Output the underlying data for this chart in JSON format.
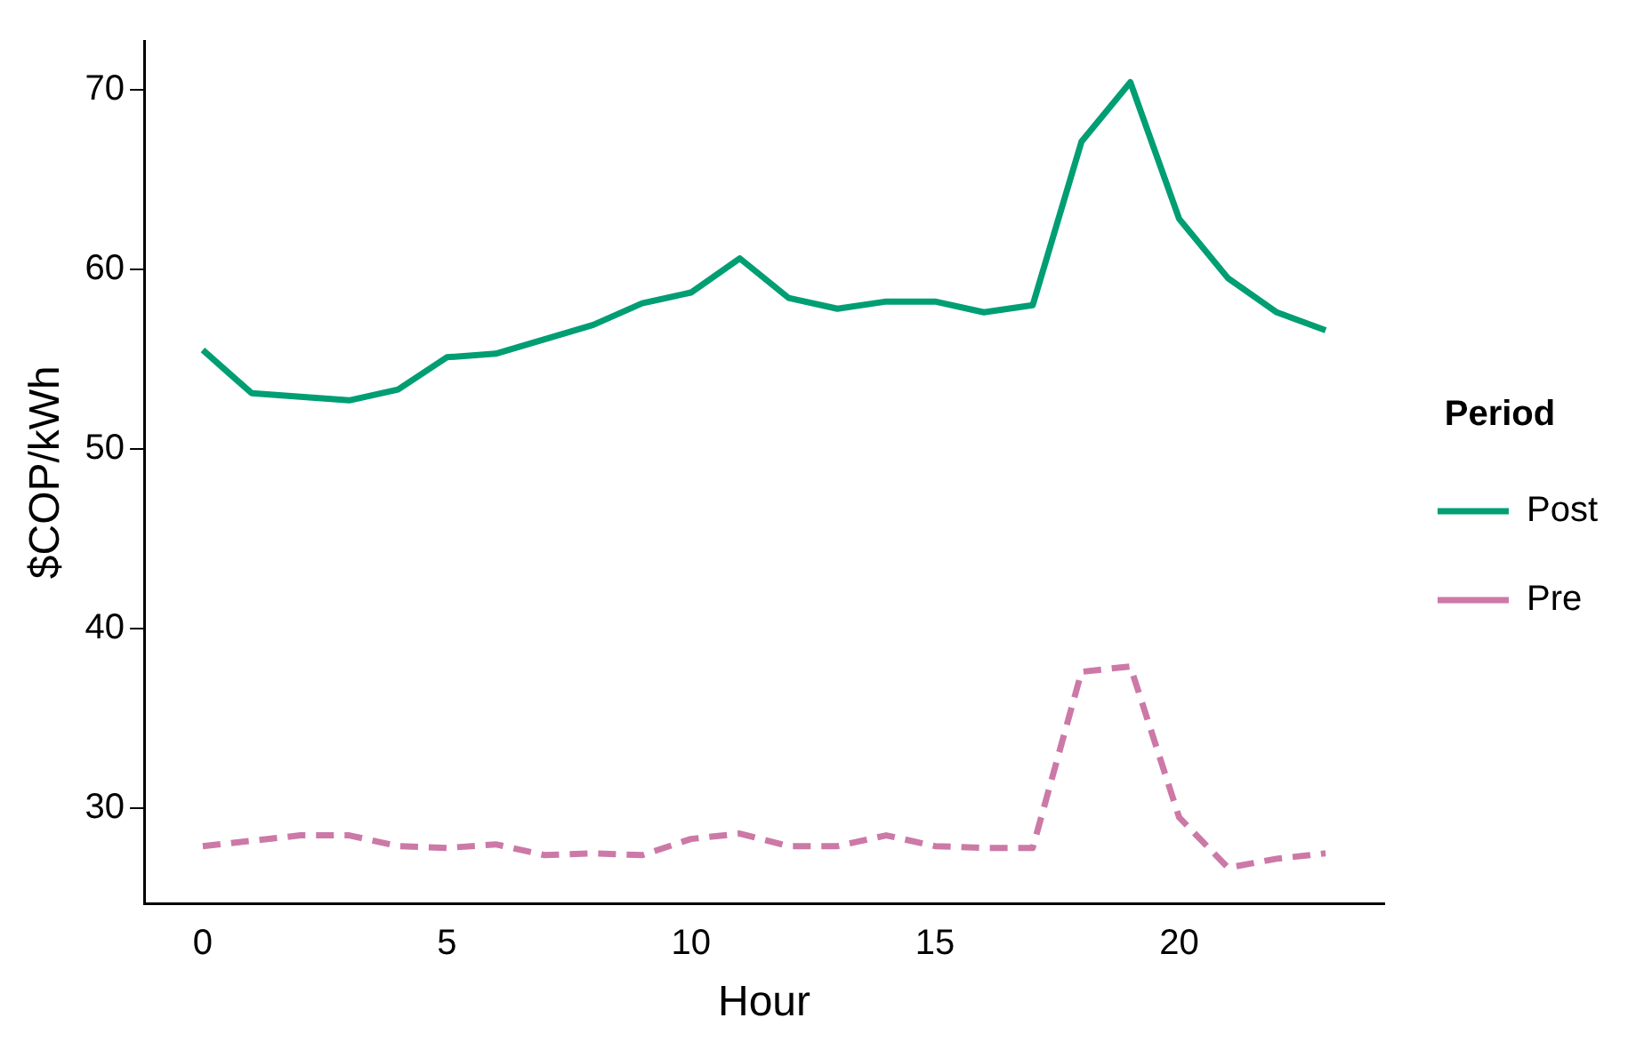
{
  "chart_data": {
    "type": "line",
    "xlabel": "Hour",
    "ylabel": "$COP/kWh",
    "legend_title": "Period",
    "legend": "right",
    "grid": false,
    "marker": "none",
    "x": [
      0,
      1,
      2,
      3,
      4,
      5,
      6,
      7,
      8,
      9,
      10,
      11,
      12,
      13,
      14,
      15,
      16,
      17,
      18,
      19,
      20,
      21,
      22,
      23
    ],
    "xlim": [
      -1.2,
      24.2
    ],
    "xticks": [
      0,
      5,
      10,
      15,
      20
    ],
    "ylim": [
      24.7,
      72.7
    ],
    "yticks": [
      30,
      40,
      50,
      60,
      70
    ],
    "series": [
      {
        "name": "Post",
        "color": "#009e73",
        "line_style": "solid",
        "values": [
          55.5,
          53.1,
          52.9,
          52.7,
          53.3,
          55.1,
          55.3,
          56.1,
          56.9,
          58.1,
          58.7,
          60.6,
          58.4,
          57.8,
          58.2,
          58.2,
          57.6,
          58.0,
          67.1,
          70.4,
          62.8,
          59.5,
          57.6,
          56.6
        ]
      },
      {
        "name": "Pre",
        "color": "#cc79a7",
        "line_style": "dashed",
        "values": [
          27.9,
          28.2,
          28.5,
          28.5,
          27.9,
          27.8,
          28.0,
          27.4,
          27.5,
          27.4,
          28.3,
          28.6,
          27.9,
          27.9,
          28.5,
          27.9,
          27.8,
          27.8,
          37.6,
          37.9,
          29.5,
          26.7,
          27.2,
          27.5
        ]
      }
    ]
  }
}
